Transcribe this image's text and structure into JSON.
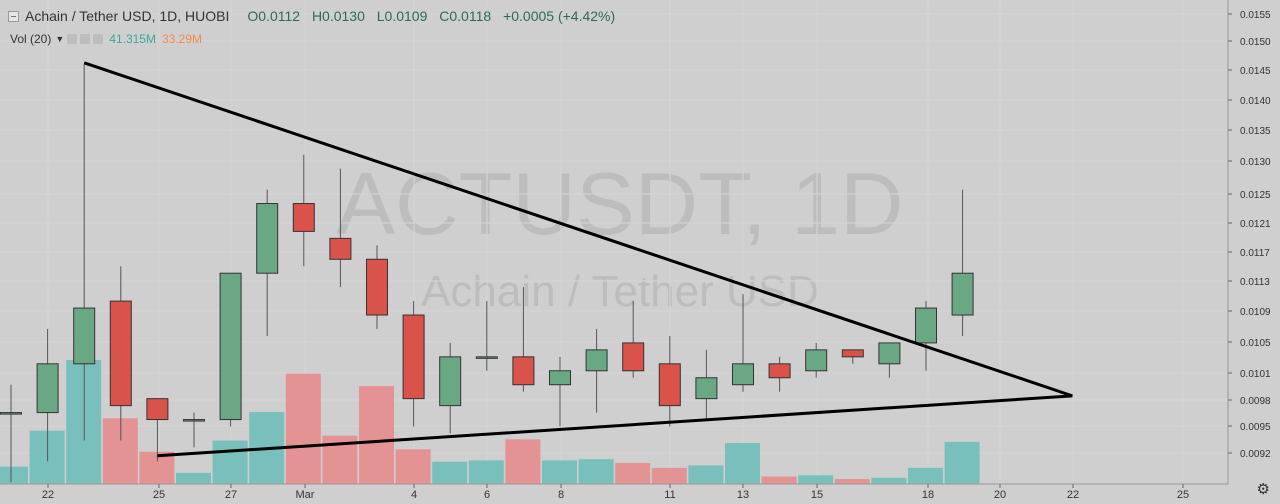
{
  "header": {
    "title": "Achain / Tether USD, 1D, HUOBI",
    "open": "O0.0112",
    "high": "H0.0130",
    "low": "L0.0109",
    "close": "C0.0118",
    "change": "+0.0005 (+4.42%)"
  },
  "volume_legend": {
    "label": "Vol (20)",
    "value1": "41.315M",
    "value2": "33.29M"
  },
  "watermark": {
    "symbol": "ACTUSDT, 1D",
    "name": "Achain / Tether USD"
  },
  "colors": {
    "up": "#6aa884",
    "down": "#d9534a",
    "vol_up": "#79bfbb",
    "vol_down": "#e39393",
    "background": "#cfcfcf"
  },
  "icons": {
    "settings": "gear-icon",
    "collapse": "collapse-box-icon"
  },
  "chart_data": {
    "type": "candlestick",
    "x_tick_labels": [
      "22",
      "25",
      "27",
      "Mar",
      "4",
      "6",
      "8",
      "11",
      "13",
      "15",
      "18",
      "20",
      "22",
      "25"
    ],
    "y_tick_labels": [
      "0.0155",
      "0.0150",
      "0.0145",
      "0.0140",
      "0.0135",
      "0.0130",
      "0.0125",
      "0.0121",
      "0.0117",
      "0.0113",
      "0.0109",
      "0.0105",
      "0.0101",
      "0.0098",
      "0.0095",
      "0.0092"
    ],
    "ylim": [
      0.0089,
      0.0157
    ],
    "candles": [
      {
        "date": "Feb 21",
        "open": 0.0098,
        "high": 0.0102,
        "low": 0.0088,
        "close": 0.0098
      },
      {
        "date": "Feb 22",
        "open": 0.0098,
        "high": 0.011,
        "low": 0.0091,
        "close": 0.0105
      },
      {
        "date": "Feb 23",
        "open": 0.0105,
        "high": 0.0148,
        "low": 0.0094,
        "close": 0.0113
      },
      {
        "date": "Feb 24",
        "open": 0.0114,
        "high": 0.0119,
        "low": 0.0094,
        "close": 0.0099
      },
      {
        "date": "Feb 25",
        "open": 0.01,
        "high": 0.01,
        "low": 0.0091,
        "close": 0.0097
      },
      {
        "date": "Feb 26",
        "open": 0.0097,
        "high": 0.0098,
        "low": 0.0093,
        "close": 0.0097
      },
      {
        "date": "Feb 27",
        "open": 0.0097,
        "high": 0.0118,
        "low": 0.0096,
        "close": 0.0118
      },
      {
        "date": "Feb 28",
        "open": 0.0118,
        "high": 0.013,
        "low": 0.0109,
        "close": 0.0128
      },
      {
        "date": "Mar 1",
        "open": 0.0128,
        "high": 0.0135,
        "low": 0.0119,
        "close": 0.0124
      },
      {
        "date": "Mar 2",
        "open": 0.0123,
        "high": 0.0133,
        "low": 0.0116,
        "close": 0.012
      },
      {
        "date": "Mar 3",
        "open": 0.012,
        "high": 0.0122,
        "low": 0.011,
        "close": 0.0112
      },
      {
        "date": "Mar 4",
        "open": 0.0112,
        "high": 0.0114,
        "low": 0.0096,
        "close": 0.01
      },
      {
        "date": "Mar 5",
        "open": 0.0099,
        "high": 0.0108,
        "low": 0.0095,
        "close": 0.0106
      },
      {
        "date": "Mar 6",
        "open": 0.0106,
        "high": 0.0114,
        "low": 0.0104,
        "close": 0.0106
      },
      {
        "date": "Mar 7",
        "open": 0.0106,
        "high": 0.0116,
        "low": 0.0101,
        "close": 0.0102
      },
      {
        "date": "Mar 8",
        "open": 0.0102,
        "high": 0.0106,
        "low": 0.0096,
        "close": 0.0104
      },
      {
        "date": "Mar 9",
        "open": 0.0104,
        "high": 0.011,
        "low": 0.0098,
        "close": 0.0107
      },
      {
        "date": "Mar 10",
        "open": 0.0108,
        "high": 0.0114,
        "low": 0.0103,
        "close": 0.0104
      },
      {
        "date": "Mar 11",
        "open": 0.0105,
        "high": 0.0109,
        "low": 0.0096,
        "close": 0.0099
      },
      {
        "date": "Mar 12",
        "open": 0.01,
        "high": 0.0107,
        "low": 0.0097,
        "close": 0.0103
      },
      {
        "date": "Mar 13",
        "open": 0.0102,
        "high": 0.0115,
        "low": 0.0101,
        "close": 0.0105
      },
      {
        "date": "Mar 14",
        "open": 0.0105,
        "high": 0.0106,
        "low": 0.0101,
        "close": 0.0103
      },
      {
        "date": "Mar 15",
        "open": 0.0104,
        "high": 0.0108,
        "low": 0.0103,
        "close": 0.0107
      },
      {
        "date": "Mar 16",
        "open": 0.0107,
        "high": 0.0107,
        "low": 0.0105,
        "close": 0.0106
      },
      {
        "date": "Mar 17",
        "open": 0.0105,
        "high": 0.0108,
        "low": 0.0103,
        "close": 0.0108
      },
      {
        "date": "Mar 18",
        "open": 0.0108,
        "high": 0.0114,
        "low": 0.0104,
        "close": 0.0113
      },
      {
        "date": "Mar 19",
        "open": 0.0112,
        "high": 0.013,
        "low": 0.0109,
        "close": 0.0118
      }
    ],
    "volume_relative": [
      0.14,
      0.43,
      1.0,
      0.53,
      0.26,
      0.09,
      0.35,
      0.58,
      0.89,
      0.39,
      0.79,
      0.28,
      0.18,
      0.19,
      0.36,
      0.19,
      0.2,
      0.17,
      0.13,
      0.15,
      0.33,
      0.06,
      0.07,
      0.04,
      0.05,
      0.13,
      0.34
    ],
    "trendlines": [
      {
        "from": {
          "date": "Feb 23",
          "price": 0.01482
        },
        "to": {
          "date": "Mar 22",
          "price": 0.01004
        }
      },
      {
        "from": {
          "date": "Feb 25",
          "price": 0.00918
        },
        "to": {
          "date": "Mar 22",
          "price": 0.01004
        }
      }
    ]
  }
}
